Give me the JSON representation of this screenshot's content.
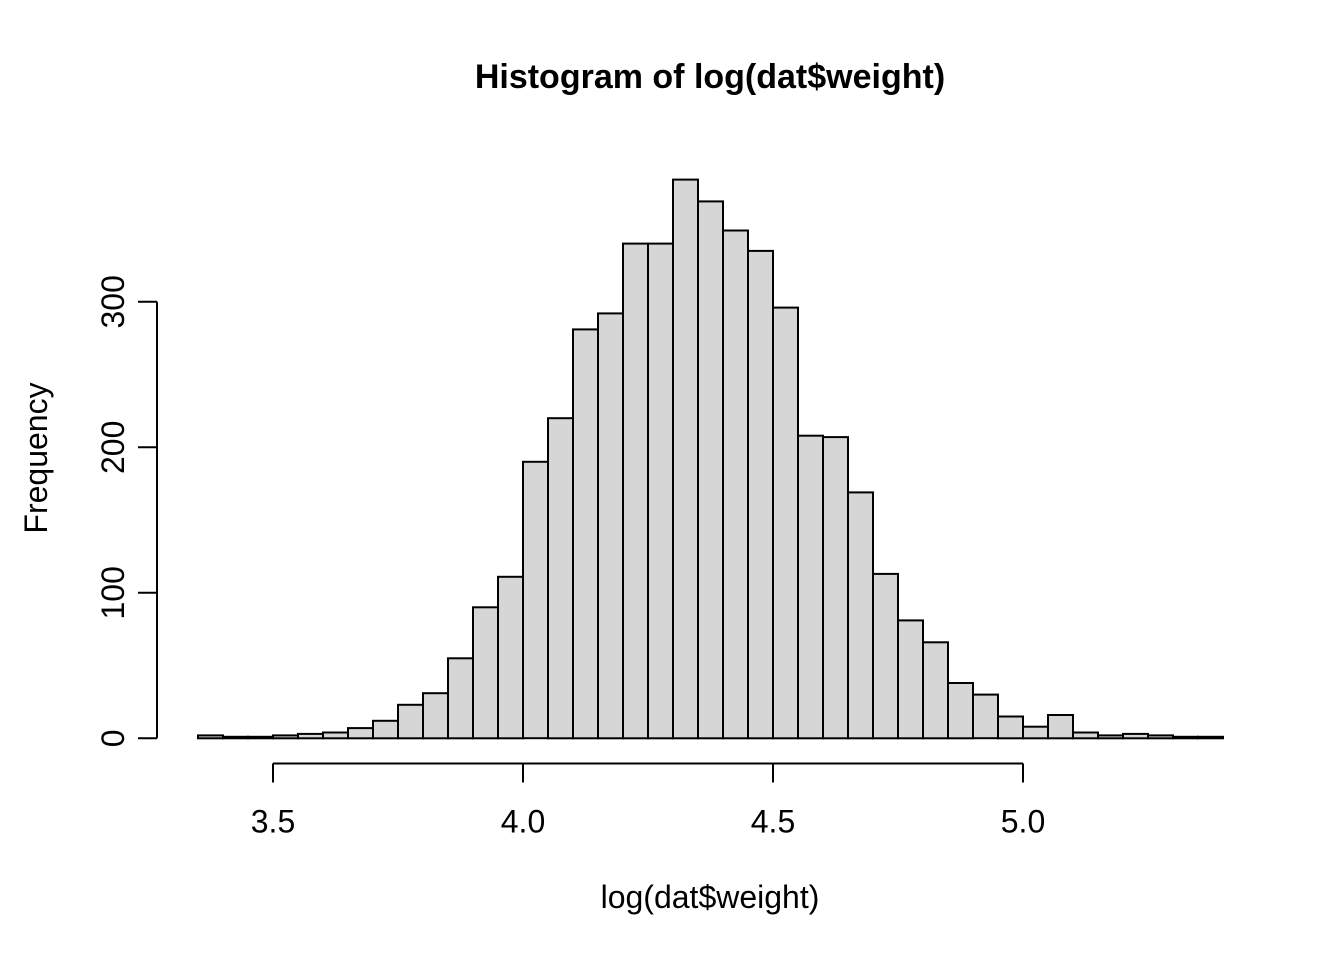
{
  "figure": {
    "title": "Histogram of log(dat$weight)",
    "xlabel": "log(dat$weight)",
    "ylabel": "Frequency"
  },
  "chart_data": {
    "type": "bar",
    "subtype": "histogram",
    "title": "Histogram of log(dat$weight)",
    "xlabel": "log(dat$weight)",
    "ylabel": "Frequency",
    "bin_start": 3.35,
    "bin_width": 0.05,
    "bin_edges": [
      3.35,
      3.4,
      3.45,
      3.5,
      3.55,
      3.6,
      3.65,
      3.7,
      3.75,
      3.8,
      3.85,
      3.9,
      3.95,
      4.0,
      4.05,
      4.1,
      4.15,
      4.2,
      4.25,
      4.3,
      4.35,
      4.4,
      4.45,
      4.5,
      4.55,
      4.6,
      4.65,
      4.7,
      4.75,
      4.8,
      4.85,
      4.9,
      4.95,
      5.0,
      5.05,
      5.1,
      5.15,
      5.2,
      5.25,
      5.3,
      5.35,
      5.4
    ],
    "frequencies": [
      2,
      1,
      1,
      2,
      3,
      4,
      7,
      12,
      23,
      31,
      55,
      90,
      111,
      190,
      220,
      281,
      292,
      340,
      340,
      384,
      369,
      349,
      335,
      296,
      208,
      207,
      169,
      113,
      81,
      66,
      38,
      30,
      15,
      8,
      16,
      4,
      2,
      3,
      2,
      1,
      1
    ],
    "x_tick_labels": [
      "3.5",
      "4.0",
      "4.5",
      "5.0"
    ],
    "x_tick_values": [
      3.5,
      4.0,
      4.5,
      5.0
    ],
    "y_tick_labels": [
      "0",
      "100",
      "200",
      "300"
    ],
    "y_tick_values": [
      0,
      100,
      200,
      300
    ],
    "xlim": [
      3.35,
      5.4
    ],
    "ylim": [
      0,
      384
    ],
    "grid": false,
    "legend": null,
    "bar_fill": "#d6d6d6",
    "bar_stroke": "#000000",
    "axis_color": "#000000",
    "text_color": "#000000",
    "background": "#ffffff"
  }
}
